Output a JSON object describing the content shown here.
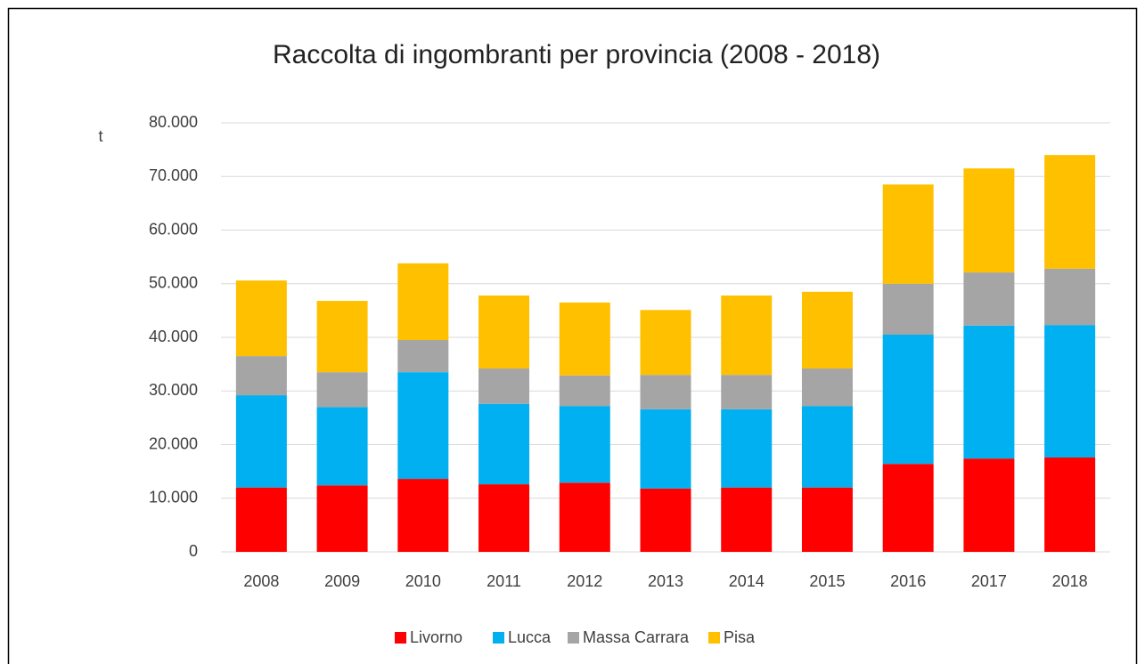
{
  "chart_data": {
    "type": "stacked_bar",
    "title": "Raccolta di ingombranti per provincia (2008 - 2018)",
    "y_label": "t",
    "categories": [
      "2008",
      "2009",
      "2010",
      "2011",
      "2012",
      "2013",
      "2014",
      "2015",
      "2016",
      "2017",
      "2018"
    ],
    "series": [
      {
        "name": "Livorno",
        "color": "#ff0000",
        "values": [
          12000,
          12400,
          13600,
          12600,
          12900,
          11800,
          12000,
          12000,
          16400,
          17400,
          17600
        ]
      },
      {
        "name": "Lucca",
        "color": "#00b0f0",
        "values": [
          17200,
          14600,
          19900,
          15000,
          14300,
          14800,
          14600,
          15200,
          24100,
          24800,
          24700
        ]
      },
      {
        "name": "Massa Carrara",
        "color": "#a5a5a5",
        "values": [
          7300,
          6500,
          6000,
          6600,
          5700,
          6400,
          6400,
          7000,
          9500,
          9900,
          10500
        ]
      },
      {
        "name": "Pisa",
        "color": "#ffc000",
        "values": [
          14100,
          13300,
          14300,
          13600,
          13600,
          12100,
          14800,
          14300,
          18500,
          19400,
          21200
        ]
      }
    ],
    "ylim": [
      0,
      80000
    ],
    "yticks": [
      0,
      {
        "value": 10000,
        "label": "10.000"
      },
      {
        "value": 20000,
        "label": "20.000"
      },
      {
        "value": 30000,
        "label": "30.000"
      },
      {
        "value": 40000,
        "label": "40.000"
      },
      {
        "value": 50000,
        "label": "50.000"
      },
      {
        "value": 60000,
        "label": "60.000"
      },
      {
        "value": 70000,
        "label": "70.000"
      },
      {
        "value": 80000,
        "label": "80.000"
      }
    ],
    "grid": true,
    "legend": "bottom"
  }
}
